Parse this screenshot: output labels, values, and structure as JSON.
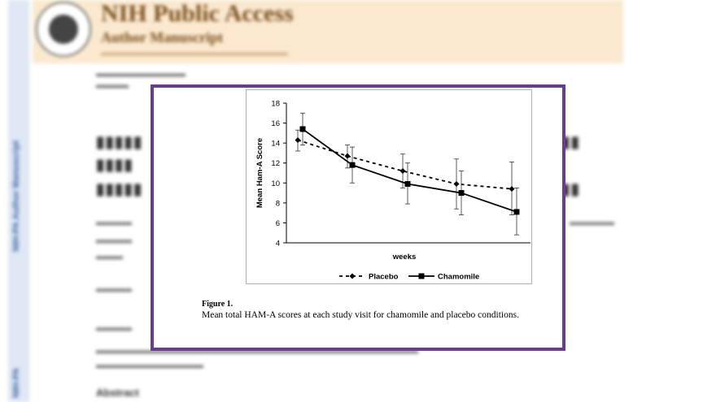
{
  "background": {
    "header_title": "NIH Public Access",
    "header_subtitle": "Author Manuscript",
    "strip_top": "NIH-PA Author Manuscript",
    "strip_bottom": "NIH-PA",
    "abstract_heading": "Abstract"
  },
  "figure": {
    "label": "Figure 1.",
    "caption": "Mean total HAM-A scores at each study visit for chamomile and placebo conditions."
  },
  "chart_data": {
    "type": "line",
    "xlabel": "weeks",
    "ylabel": "Mean Ham-A Score",
    "ylim": [
      4,
      18
    ],
    "yticks": [
      4,
      6,
      8,
      10,
      12,
      14,
      16,
      18
    ],
    "x_points": 5,
    "legend_position": "bottom",
    "grid": false,
    "series": [
      {
        "name": "Placebo",
        "style": "dashed",
        "marker": "diamond",
        "values": [
          14.3,
          12.7,
          11.2,
          9.9,
          9.4
        ],
        "error_low": [
          13.2,
          11.5,
          9.5,
          7.4,
          6.8
        ],
        "error_high": [
          15.3,
          13.8,
          12.9,
          12.4,
          12.1
        ]
      },
      {
        "name": "Chamomile",
        "style": "solid",
        "marker": "square",
        "values": [
          15.4,
          11.8,
          9.9,
          9.0,
          7.1
        ],
        "error_low": [
          13.8,
          10.0,
          7.9,
          6.8,
          4.8
        ],
        "error_high": [
          17.0,
          13.6,
          12.0,
          11.2,
          9.5
        ]
      }
    ]
  }
}
